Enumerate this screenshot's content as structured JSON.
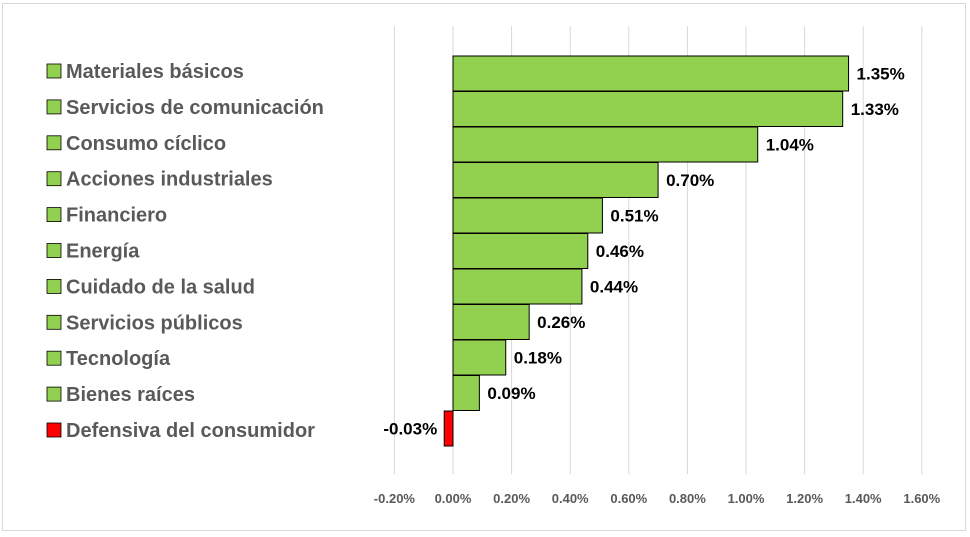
{
  "chart_data": {
    "type": "bar",
    "orientation": "horizontal",
    "title": "",
    "xlabel": "",
    "ylabel": "",
    "xlim": [
      -0.2,
      1.6
    ],
    "x_ticks": [
      -0.2,
      0.0,
      0.2,
      0.4,
      0.6,
      0.8,
      1.0,
      1.2,
      1.4,
      1.6
    ],
    "x_tick_labels": [
      "-0.20%",
      "0.00%",
      "0.20%",
      "0.40%",
      "0.60%",
      "0.80%",
      "1.00%",
      "1.20%",
      "1.40%",
      "1.60%"
    ],
    "grid": "vertical",
    "legend_position": "left",
    "categories": [
      "Materiales básicos",
      "Servicios de comunicación",
      "Consumo cíclico",
      "Acciones industriales",
      "Financiero",
      "Energía",
      "Cuidado de la salud",
      "Servicios públicos",
      "Tecnología",
      "Bienes raíces",
      "Defensiva del consumidor"
    ],
    "values": [
      1.35,
      1.33,
      1.04,
      0.7,
      0.51,
      0.46,
      0.44,
      0.26,
      0.18,
      0.09,
      -0.03
    ],
    "value_labels": [
      "1.35%",
      "1.33%",
      "1.04%",
      "0.70%",
      "0.51%",
      "0.46%",
      "0.44%",
      "0.26%",
      "0.18%",
      "0.09%",
      "-0.03%"
    ],
    "colors": [
      "#92d050",
      "#92d050",
      "#92d050",
      "#92d050",
      "#92d050",
      "#92d050",
      "#92d050",
      "#92d050",
      "#92d050",
      "#92d050",
      "#ff0000"
    ]
  },
  "style": {
    "gridline_color": "#d9d9d9",
    "bar_border_color": "#000000"
  }
}
